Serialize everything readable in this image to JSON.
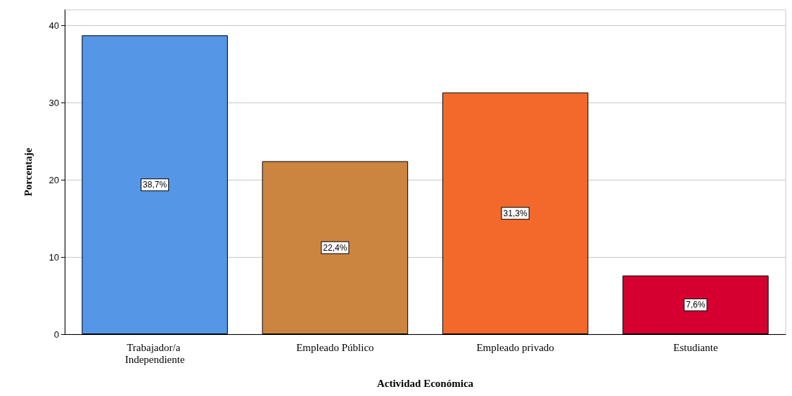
{
  "chart_data": {
    "type": "bar",
    "xlabel": "Actividad Económica",
    "ylabel": "Porcentaje",
    "categories": [
      "Trabajador/a Independiente",
      "Empleado Público",
      "Empleado privado",
      "Estudiante"
    ],
    "values": [
      38.7,
      22.4,
      31.3,
      7.6
    ],
    "colors": [
      "#5596e6",
      "#cc8540",
      "#f2692b",
      "#d5002f"
    ],
    "value_labels": [
      "38,7%",
      "22,4%",
      "31,3%",
      "7,6%"
    ],
    "ylim": [
      0,
      42
    ],
    "yticks": [
      0,
      10,
      20,
      30,
      40
    ],
    "grid": "y"
  }
}
